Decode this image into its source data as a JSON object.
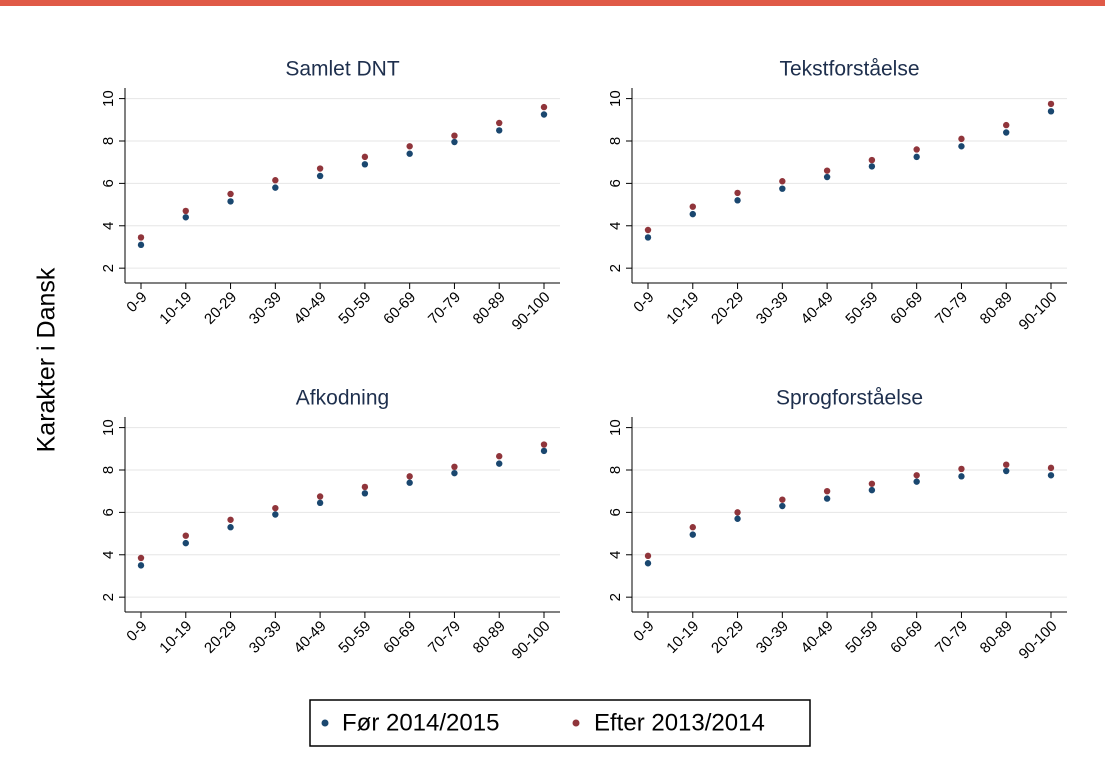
{
  "y_label": "Karakter i Dansk",
  "chart_data": [
    {
      "type": "scatter",
      "title": "Samlet DNT",
      "categories": [
        "0-9",
        "10-19",
        "20-29",
        "30-39",
        "40-49",
        "50-59",
        "60-69",
        "70-79",
        "80-89",
        "90-100"
      ],
      "series": [
        {
          "name": "Før 2014/2015",
          "color": "#1a476f",
          "values": [
            3.1,
            4.4,
            5.15,
            5.8,
            6.35,
            6.9,
            7.4,
            7.95,
            8.5,
            9.25
          ]
        },
        {
          "name": "Efter 2013/2014",
          "color": "#90353b",
          "values": [
            3.45,
            4.7,
            5.5,
            6.15,
            6.7,
            7.25,
            7.75,
            8.25,
            8.85,
            9.6
          ]
        }
      ],
      "ylim": [
        1.3,
        10.5
      ],
      "yticks": [
        2,
        4,
        6,
        8,
        10
      ],
      "grid": true
    },
    {
      "type": "scatter",
      "title": "Tekstforståelse",
      "categories": [
        "0-9",
        "10-19",
        "20-29",
        "30-39",
        "40-49",
        "50-59",
        "60-69",
        "70-79",
        "80-89",
        "90-100"
      ],
      "series": [
        {
          "name": "Før 2014/2015",
          "color": "#1a476f",
          "values": [
            3.45,
            4.55,
            5.2,
            5.75,
            6.3,
            6.8,
            7.25,
            7.75,
            8.4,
            9.4
          ]
        },
        {
          "name": "Efter 2013/2014",
          "color": "#90353b",
          "values": [
            3.8,
            4.9,
            5.55,
            6.1,
            6.6,
            7.1,
            7.6,
            8.1,
            8.75,
            9.75
          ]
        }
      ],
      "ylim": [
        1.3,
        10.5
      ],
      "yticks": [
        2,
        4,
        6,
        8,
        10
      ],
      "grid": true
    },
    {
      "type": "scatter",
      "title": "Afkodning",
      "categories": [
        "0-9",
        "10-19",
        "20-29",
        "30-39",
        "40-49",
        "50-59",
        "60-69",
        "70-79",
        "80-89",
        "90-100"
      ],
      "series": [
        {
          "name": "Før 2014/2015",
          "color": "#1a476f",
          "values": [
            3.5,
            4.55,
            5.3,
            5.9,
            6.45,
            6.9,
            7.4,
            7.85,
            8.3,
            8.9
          ]
        },
        {
          "name": "Efter 2013/2014",
          "color": "#90353b",
          "values": [
            3.85,
            4.9,
            5.65,
            6.2,
            6.75,
            7.2,
            7.7,
            8.15,
            8.65,
            9.2
          ]
        }
      ],
      "ylim": [
        1.3,
        10.5
      ],
      "yticks": [
        2,
        4,
        6,
        8,
        10
      ],
      "grid": true
    },
    {
      "type": "scatter",
      "title": "Sprogforståelse",
      "categories": [
        "0-9",
        "10-19",
        "20-29",
        "30-39",
        "40-49",
        "50-59",
        "60-69",
        "70-79",
        "80-89",
        "90-100"
      ],
      "series": [
        {
          "name": "Før 2014/2015",
          "color": "#1a476f",
          "values": [
            3.6,
            4.95,
            5.7,
            6.3,
            6.65,
            7.05,
            7.45,
            7.7,
            7.95,
            7.75
          ]
        },
        {
          "name": "Efter 2013/2014",
          "color": "#90353b",
          "values": [
            3.95,
            5.3,
            6.0,
            6.6,
            7.0,
            7.35,
            7.75,
            8.05,
            8.25,
            8.1
          ]
        }
      ],
      "ylim": [
        1.3,
        10.5
      ],
      "yticks": [
        2,
        4,
        6,
        8,
        10
      ],
      "grid": true
    }
  ]
}
